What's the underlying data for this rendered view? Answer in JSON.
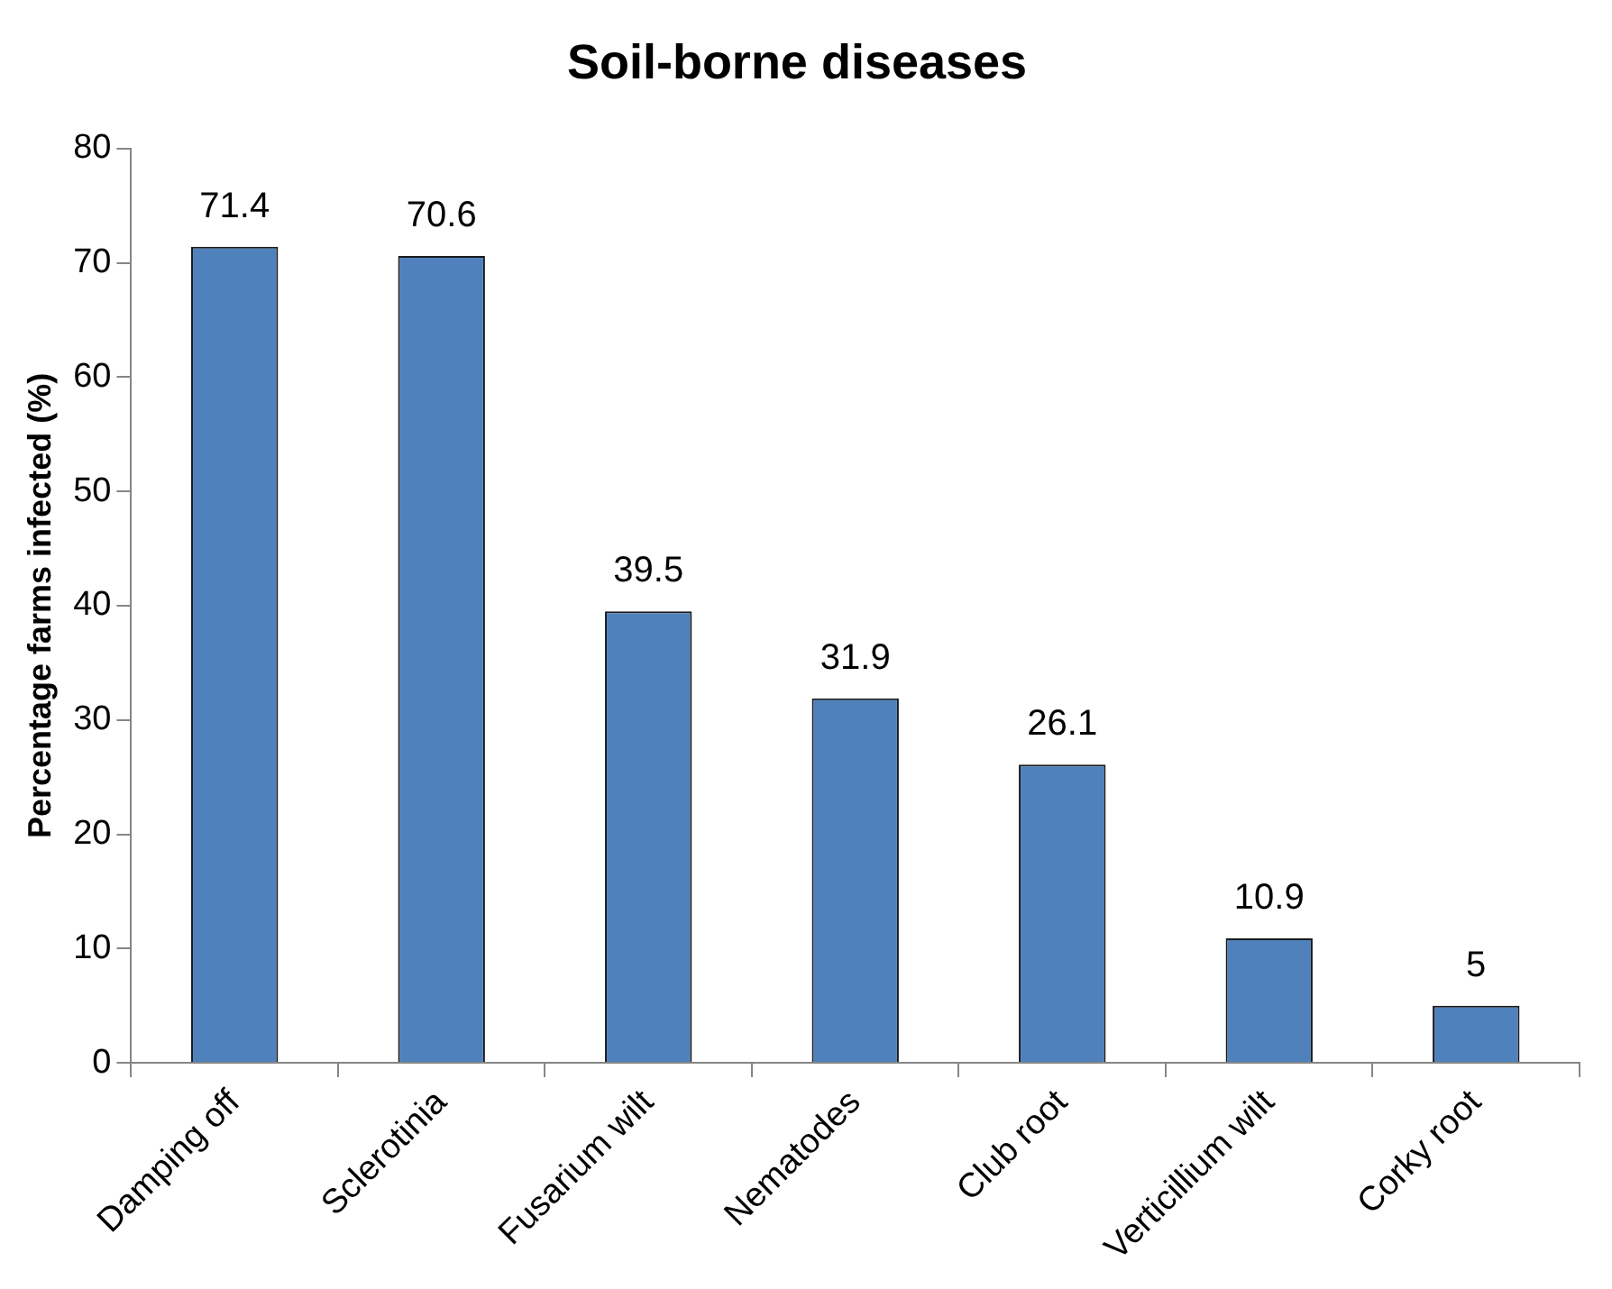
{
  "chart_data": {
    "type": "bar",
    "title": "Soil-borne diseases",
    "ylabel": "Percentage farms infected (%)",
    "categories": [
      "Damping off",
      "Sclerotinia",
      "Fusarium wilt",
      "Nematodes",
      "Club root",
      "Verticillium wilt",
      "Corky root"
    ],
    "values": [
      71.4,
      70.6,
      39.5,
      31.9,
      26.1,
      10.9,
      5
    ],
    "color": "#4f81bd",
    "ylim": [
      0,
      80
    ],
    "yticks": [
      0,
      10,
      20,
      30,
      40,
      50,
      60,
      70,
      80
    ],
    "data_labels": true
  }
}
